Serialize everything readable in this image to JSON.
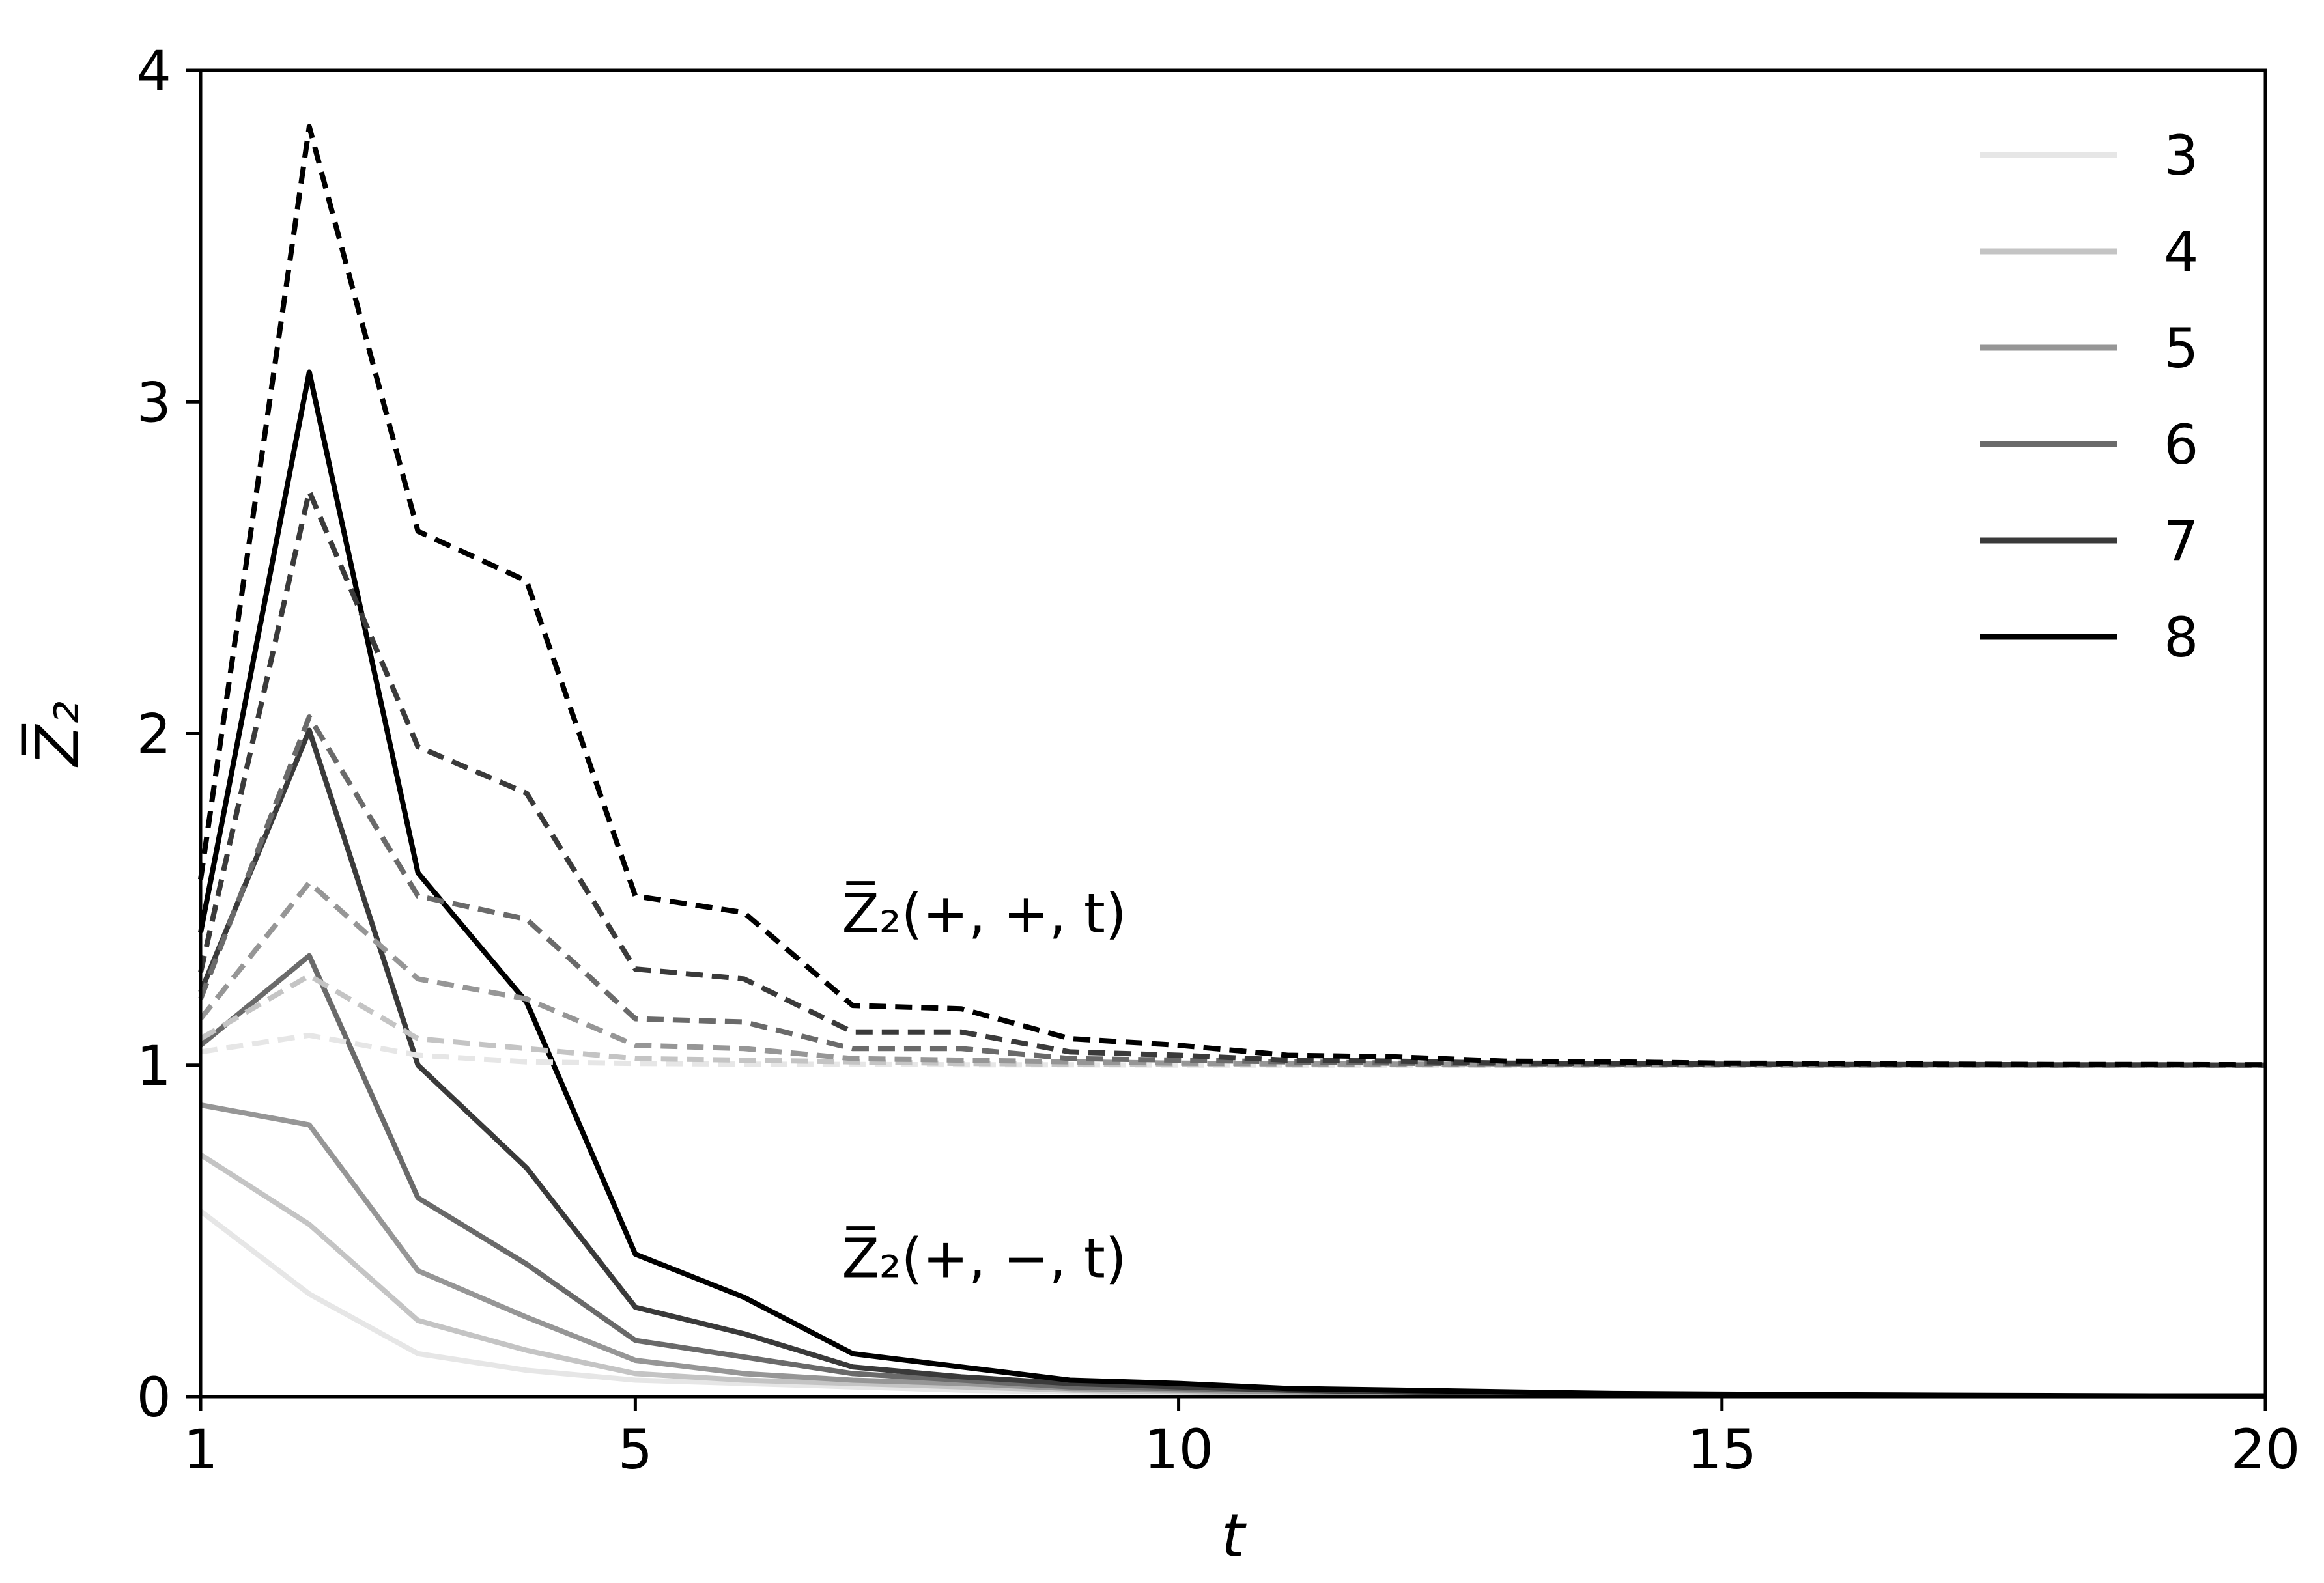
{
  "chart_data": {
    "type": "line",
    "xlabel": "t",
    "ylabel": "Z̅₂",
    "xlim": [
      1,
      20
    ],
    "ylim": [
      0,
      4
    ],
    "xticks": [
      1,
      5,
      10,
      15,
      20
    ],
    "yticks": [
      0,
      1,
      2,
      3,
      4
    ],
    "grid": false,
    "legend_placement": "top-right",
    "legend": [
      "3",
      "4",
      "5",
      "6",
      "7",
      "8"
    ],
    "colors": [
      "#e6e6e6",
      "#c4c4c4",
      "#969696",
      "#6a6a6a",
      "#3a3a3a",
      "#000000"
    ],
    "x": [
      1,
      2,
      3,
      4,
      5,
      6,
      7,
      8,
      9,
      10,
      11,
      12,
      13,
      14,
      15,
      16,
      17,
      18,
      19,
      20
    ],
    "annotations": [
      {
        "text": "Z̅₂(+, +, t)",
        "x": 6.9,
        "y": 1.4
      },
      {
        "text": "Z̅₂(+, −, t)",
        "x": 6.9,
        "y": 0.36
      }
    ],
    "series": [
      {
        "name": "3",
        "style": "solid",
        "values": [
          0.56,
          0.31,
          0.13,
          0.08,
          0.05,
          0.04,
          0.03,
          0.02,
          0.015,
          0.01,
          0.008,
          0.006,
          0.005,
          0.004,
          0.003,
          0.003,
          0.002,
          0.002,
          0.002,
          0.002
        ]
      },
      {
        "name": "4",
        "style": "solid",
        "values": [
          0.73,
          0.52,
          0.23,
          0.14,
          0.07,
          0.05,
          0.04,
          0.03,
          0.02,
          0.015,
          0.01,
          0.008,
          0.006,
          0.005,
          0.004,
          0.003,
          0.003,
          0.002,
          0.002,
          0.002
        ]
      },
      {
        "name": "5",
        "style": "solid",
        "values": [
          0.88,
          0.82,
          0.38,
          0.24,
          0.11,
          0.07,
          0.05,
          0.04,
          0.025,
          0.02,
          0.015,
          0.01,
          0.008,
          0.006,
          0.005,
          0.004,
          0.003,
          0.003,
          0.002,
          0.002
        ]
      },
      {
        "name": "6",
        "style": "solid",
        "values": [
          1.06,
          1.33,
          0.6,
          0.4,
          0.17,
          0.12,
          0.07,
          0.05,
          0.03,
          0.025,
          0.02,
          0.015,
          0.01,
          0.008,
          0.006,
          0.005,
          0.004,
          0.003,
          0.003,
          0.002
        ]
      },
      {
        "name": "7",
        "style": "solid",
        "values": [
          1.22,
          2.01,
          1.0,
          0.69,
          0.27,
          0.19,
          0.09,
          0.06,
          0.04,
          0.03,
          0.02,
          0.015,
          0.01,
          0.008,
          0.006,
          0.005,
          0.004,
          0.003,
          0.003,
          0.002
        ]
      },
      {
        "name": "8",
        "style": "solid",
        "values": [
          1.4,
          3.09,
          1.58,
          1.19,
          0.43,
          0.3,
          0.13,
          0.09,
          0.05,
          0.04,
          0.025,
          0.02,
          0.015,
          0.01,
          0.008,
          0.006,
          0.005,
          0.004,
          0.003,
          0.003
        ]
      },
      {
        "name": "3",
        "style": "dashed",
        "values": [
          1.04,
          1.09,
          1.03,
          1.01,
          1.005,
          1.003,
          1.002,
          1.001,
          1.001,
          1.0,
          1.0,
          1.0,
          1.0,
          1.0,
          1.0,
          1.0,
          1.0,
          1.0,
          1.0,
          1.0
        ]
      },
      {
        "name": "4",
        "style": "dashed",
        "values": [
          1.08,
          1.27,
          1.08,
          1.05,
          1.02,
          1.015,
          1.01,
          1.005,
          1.003,
          1.002,
          1.001,
          1.001,
          1.0,
          1.0,
          1.0,
          1.0,
          1.0,
          1.0,
          1.0,
          1.0
        ]
      },
      {
        "name": "5",
        "style": "dashed",
        "values": [
          1.14,
          1.55,
          1.26,
          1.2,
          1.06,
          1.05,
          1.02,
          1.015,
          1.01,
          1.006,
          1.004,
          1.003,
          1.002,
          1.001,
          1.001,
          1.0,
          1.0,
          1.0,
          1.0,
          1.0
        ]
      },
      {
        "name": "6",
        "style": "dashed",
        "values": [
          1.2,
          2.05,
          1.51,
          1.44,
          1.14,
          1.13,
          1.05,
          1.05,
          1.02,
          1.015,
          1.01,
          1.006,
          1.004,
          1.003,
          1.002,
          1.001,
          1.001,
          1.0,
          1.0,
          1.0
        ]
      },
      {
        "name": "7",
        "style": "dashed",
        "values": [
          1.28,
          2.73,
          1.96,
          1.82,
          1.29,
          1.26,
          1.1,
          1.1,
          1.04,
          1.03,
          1.015,
          1.012,
          1.006,
          1.005,
          1.003,
          1.002,
          1.002,
          1.001,
          1.001,
          1.0
        ]
      },
      {
        "name": "8",
        "style": "dashed",
        "values": [
          1.56,
          3.83,
          2.61,
          2.46,
          1.51,
          1.46,
          1.18,
          1.17,
          1.08,
          1.06,
          1.03,
          1.025,
          1.012,
          1.01,
          1.006,
          1.005,
          1.003,
          1.002,
          1.002,
          1.001
        ]
      }
    ]
  }
}
